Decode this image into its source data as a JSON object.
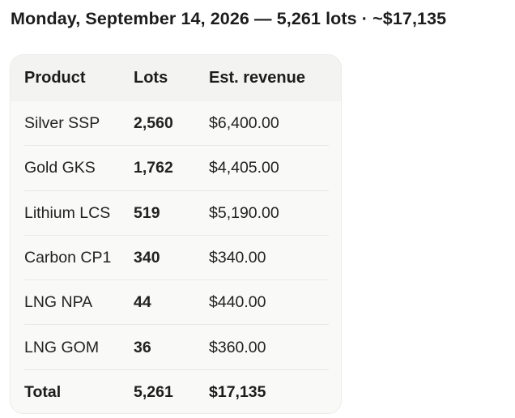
{
  "summary": {
    "text": "Monday, September 14, 2026 — 5,261 lots · ~$17,135"
  },
  "table": {
    "headers": {
      "product": "Product",
      "lots": "Lots",
      "revenue": "Est. revenue"
    },
    "rows": [
      {
        "product": "Silver SSP",
        "lots": "2,560",
        "revenue": "$6,400.00"
      },
      {
        "product": "Gold GKS",
        "lots": "1,762",
        "revenue": "$4,405.00"
      },
      {
        "product": "Lithium LCS",
        "lots": "519",
        "revenue": "$5,190.00"
      },
      {
        "product": "Carbon CP1",
        "lots": "340",
        "revenue": "$340.00"
      },
      {
        "product": "LNG NPA",
        "lots": "44",
        "revenue": "$440.00"
      },
      {
        "product": "LNG GOM",
        "lots": "36",
        "revenue": "$360.00"
      }
    ],
    "total": {
      "label": "Total",
      "lots": "5,261",
      "revenue": "$17,135"
    }
  }
}
